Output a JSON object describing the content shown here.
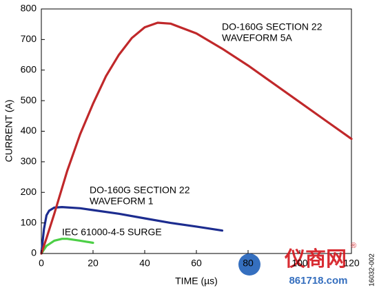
{
  "chart_data": {
    "type": "line",
    "xlabel": "TIME (µs)",
    "ylabel": "CURRENT (A)",
    "xlim": [
      0,
      120
    ],
    "xticks": [
      0,
      20,
      40,
      60,
      80,
      100,
      120
    ],
    "ylim": [
      0,
      800
    ],
    "yticks": [
      0,
      100,
      200,
      300,
      400,
      500,
      600,
      700,
      800
    ],
    "grid": false,
    "series": [
      {
        "color": "#c0282a",
        "x": [
          0,
          2,
          5,
          10,
          15,
          20,
          25,
          30,
          35,
          40,
          45,
          50,
          60,
          70,
          80,
          90,
          100,
          110,
          120
        ],
        "values": [
          0,
          50,
          130,
          270,
          390,
          490,
          580,
          650,
          705,
          740,
          755,
          752,
          720,
          670,
          615,
          555,
          495,
          435,
          375
        ]
      },
      {
        "color": "#1c2c8f",
        "x": [
          0,
          1,
          2,
          3,
          5,
          8,
          15,
          20,
          30,
          40,
          50,
          60,
          70
        ],
        "values": [
          0,
          80,
          125,
          140,
          150,
          152,
          148,
          142,
          130,
          115,
          100,
          88,
          75
        ]
      },
      {
        "color": "#4ccf46",
        "x": [
          0,
          2,
          5,
          8,
          10,
          15,
          20
        ],
        "values": [
          0,
          25,
          42,
          48,
          48,
          42,
          35
        ]
      }
    ],
    "annotations": [
      {
        "lines": [
          "DO-160G SECTION 22",
          "WAVEFORM 5A"
        ]
      },
      {
        "lines": [
          "DO-160G SECTION 22",
          "WAVEFORM 1"
        ]
      },
      {
        "lines": [
          "IEC 61000-4-5 SURGE"
        ]
      }
    ],
    "figure_id": "16032-002",
    "watermark": {
      "name": "仪商网",
      "mark": "®",
      "site": "861718.com"
    }
  }
}
